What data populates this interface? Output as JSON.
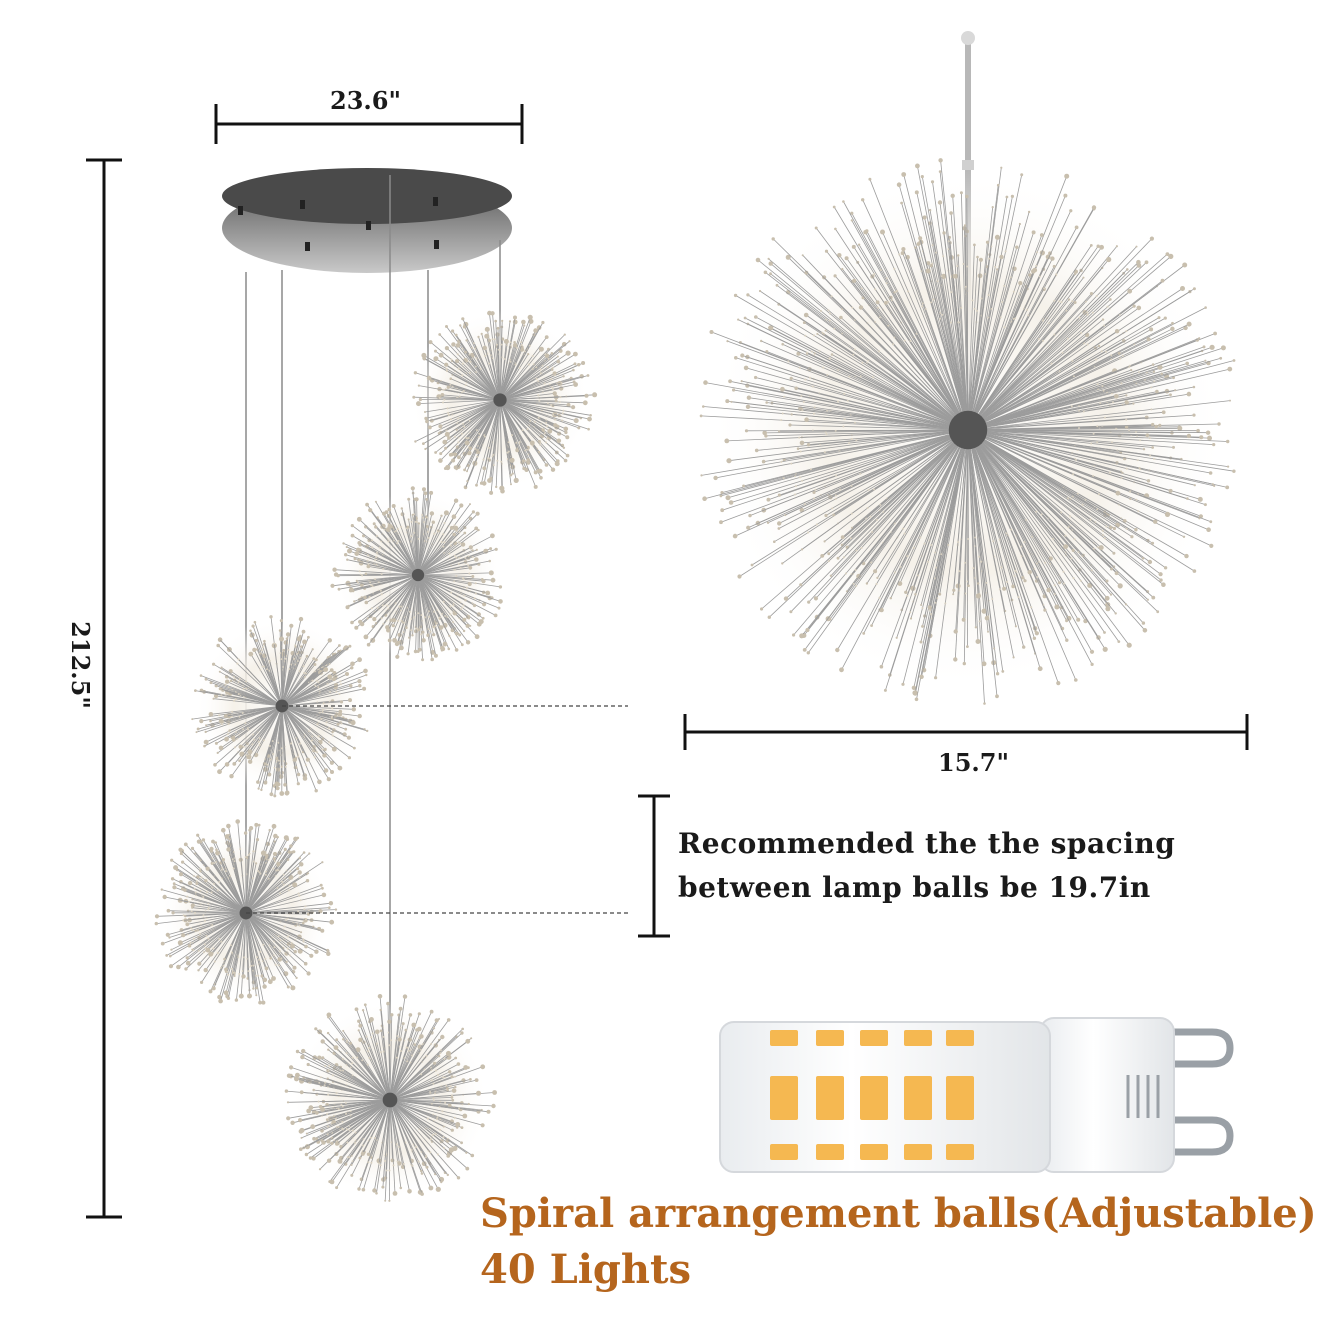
{
  "dimensions": {
    "canopy_width": "23.6\"",
    "total_height": "212.5\"",
    "ball_diameter": "15.7\""
  },
  "note": {
    "line1": "Recommended the the spacing",
    "line2": "between lamp balls be 19.7in"
  },
  "headline": {
    "line1": "Spiral arrangement balls(Adjustable)",
    "line2": "40 Lights"
  },
  "colors": {
    "headline": "#b5651d",
    "bulb_led": "#f5b851",
    "chrome": "#3a3a3a"
  }
}
